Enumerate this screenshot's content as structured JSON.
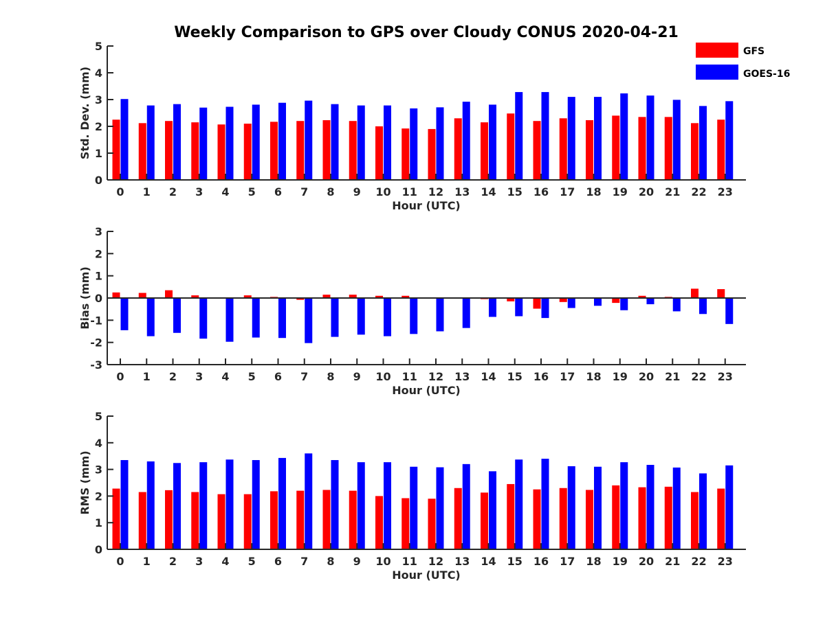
{
  "chart_data": {
    "type": "bar",
    "title": "Weekly Comparison to GPS over Cloudy CONUS 2020-04-21",
    "legend": {
      "placement": "top-right",
      "entries": [
        "GFS",
        "GOES-16"
      ]
    },
    "colors": {
      "GFS": "#ff0000",
      "GOES-16": "#0000ff",
      "axis": "#262626"
    },
    "grid": false,
    "categories": [
      "0",
      "1",
      "2",
      "3",
      "4",
      "5",
      "6",
      "7",
      "8",
      "9",
      "10",
      "11",
      "12",
      "13",
      "14",
      "15",
      "16",
      "17",
      "18",
      "19",
      "20",
      "21",
      "22",
      "23"
    ],
    "panels": [
      {
        "xlabel": "Hour (UTC)",
        "ylabel": "Std. Dev. (mm)",
        "ylim": [
          0,
          5
        ],
        "yticks": [
          "0",
          "1",
          "2",
          "3",
          "4",
          "5"
        ],
        "series": [
          {
            "name": "GFS",
            "values": [
              2.25,
              2.12,
              2.2,
              2.15,
              2.07,
              2.1,
              2.17,
              2.2,
              2.23,
              2.2,
              2.0,
              1.92,
              1.9,
              2.3,
              2.15,
              2.48,
              2.2,
              2.3,
              2.23,
              2.4,
              2.35,
              2.35,
              2.12,
              2.25
            ]
          },
          {
            "name": "GOES-16",
            "values": [
              3.02,
              2.78,
              2.83,
              2.7,
              2.73,
              2.81,
              2.88,
              2.96,
              2.83,
              2.78,
              2.78,
              2.67,
              2.71,
              2.92,
              2.81,
              3.28,
              3.28,
              3.1,
              3.1,
              3.23,
              3.15,
              2.99,
              2.76,
              2.94
            ]
          }
        ]
      },
      {
        "xlabel": "Hour (UTC)",
        "ylabel": "Bias (mm)",
        "ylim": [
          -3,
          3
        ],
        "yticks": [
          "-3",
          "-2",
          "-1",
          "0",
          "1",
          "2",
          "3"
        ],
        "series": [
          {
            "name": "GFS",
            "values": [
              0.25,
              0.23,
              0.35,
              0.12,
              0.0,
              0.12,
              0.05,
              -0.08,
              0.15,
              0.15,
              0.1,
              0.1,
              0.03,
              0.02,
              -0.05,
              -0.15,
              -0.48,
              -0.18,
              0.03,
              -0.22,
              0.1,
              0.05,
              0.42,
              0.4
            ]
          },
          {
            "name": "GOES-16",
            "values": [
              -1.45,
              -1.72,
              -1.57,
              -1.83,
              -1.97,
              -1.78,
              -1.8,
              -2.03,
              -1.75,
              -1.65,
              -1.72,
              -1.62,
              -1.5,
              -1.35,
              -0.85,
              -0.82,
              -0.9,
              -0.45,
              -0.35,
              -0.55,
              -0.28,
              -0.6,
              -0.72,
              -1.17
            ]
          }
        ]
      },
      {
        "xlabel": "Hour (UTC)",
        "ylabel": "RMS (mm)",
        "ylim": [
          0,
          5
        ],
        "yticks": [
          "0",
          "1",
          "2",
          "3",
          "4",
          "5"
        ],
        "series": [
          {
            "name": "GFS",
            "values": [
              2.28,
              2.15,
              2.22,
              2.15,
              2.07,
              2.07,
              2.18,
              2.2,
              2.23,
              2.2,
              2.0,
              1.92,
              1.9,
              2.3,
              2.13,
              2.45,
              2.25,
              2.3,
              2.23,
              2.4,
              2.33,
              2.35,
              2.15,
              2.28
            ]
          },
          {
            "name": "GOES-16",
            "values": [
              3.35,
              3.3,
              3.24,
              3.27,
              3.37,
              3.35,
              3.43,
              3.6,
              3.35,
              3.27,
              3.27,
              3.1,
              3.08,
              3.2,
              2.93,
              3.37,
              3.4,
              3.12,
              3.1,
              3.27,
              3.17,
              3.07,
              2.85,
              3.15
            ]
          }
        ]
      }
    ]
  }
}
